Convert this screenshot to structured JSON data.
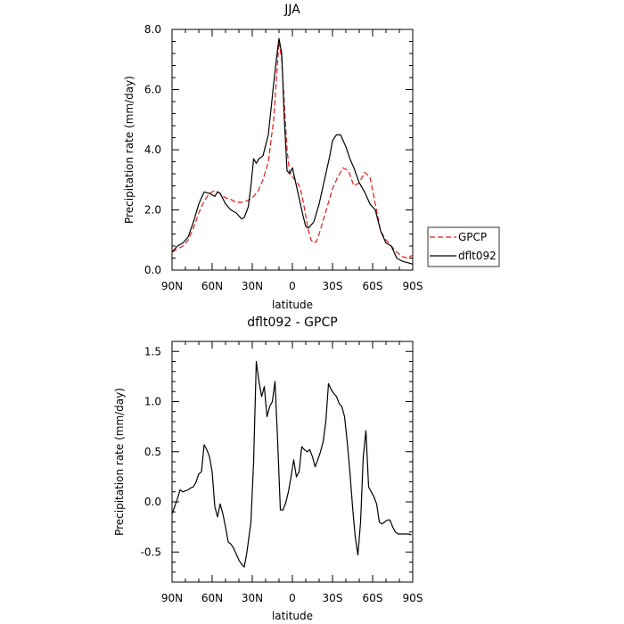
{
  "chart_data": [
    {
      "type": "line",
      "title": "JJA",
      "xlabel": "latitude",
      "ylabel": "Precipitation rate (mm/day)",
      "xlim": [
        90,
        -90
      ],
      "ylim": [
        0,
        8
      ],
      "x_ticks": [
        90,
        60,
        30,
        0,
        -30,
        -60,
        -90
      ],
      "x_tick_labels": [
        "90N",
        "60N",
        "30N",
        "0",
        "30S",
        "60S",
        "90S"
      ],
      "y_ticks": [
        0,
        2,
        4,
        6,
        8
      ],
      "y_tick_labels": [
        "0.0",
        "2.0",
        "4.0",
        "6.0",
        "8.0"
      ],
      "legend": {
        "placement": "right-outside-bottom",
        "entries": [
          "GPCP",
          "dflt092"
        ]
      },
      "series": [
        {
          "name": "GPCP",
          "color": "#e31a1c",
          "dash": "dashed",
          "x": [
            90,
            86,
            82,
            78,
            74,
            70,
            66,
            62,
            58,
            54,
            50,
            46,
            42,
            38,
            34,
            30,
            26,
            22,
            18,
            14,
            12,
            10,
            8,
            6,
            4,
            2,
            0,
            -2,
            -4,
            -6,
            -8,
            -10,
            -12,
            -14,
            -16,
            -18,
            -20,
            -22,
            -24,
            -26,
            -28,
            -30,
            -34,
            -38,
            -42,
            -46,
            -50,
            -54,
            -58,
            -62,
            -66,
            -70,
            -74,
            -78,
            -82,
            -86,
            -90
          ],
          "values": [
            0.6,
            0.7,
            0.8,
            1.0,
            1.4,
            1.9,
            2.3,
            2.55,
            2.65,
            2.55,
            2.4,
            2.35,
            2.25,
            2.25,
            2.3,
            2.4,
            2.6,
            3.0,
            3.6,
            5.0,
            6.3,
            7.6,
            7.0,
            5.5,
            4.0,
            3.2,
            3.1,
            3.0,
            2.9,
            2.7,
            2.3,
            1.8,
            1.3,
            1.0,
            0.9,
            0.95,
            1.2,
            1.5,
            1.8,
            2.1,
            2.4,
            2.7,
            3.1,
            3.4,
            3.3,
            2.8,
            2.9,
            3.25,
            3.1,
            2.2,
            1.3,
            1.0,
            0.8,
            0.6,
            0.45,
            0.4,
            0.5
          ]
        },
        {
          "name": "dflt092",
          "color": "#000000",
          "dash": "solid",
          "x": [
            90,
            86,
            82,
            78,
            74,
            70,
            66,
            62,
            58,
            56,
            54,
            50,
            46,
            42,
            38,
            36,
            33,
            31,
            29,
            27,
            25,
            22,
            18,
            14,
            12,
            10,
            8,
            6,
            4,
            2,
            0,
            -2,
            -4,
            -6,
            -8,
            -10,
            -12,
            -14,
            -16,
            -18,
            -20,
            -22,
            -24,
            -26,
            -28,
            -30,
            -33,
            -36,
            -38,
            -40,
            -43,
            -46,
            -50,
            -54,
            -58,
            -62,
            -66,
            -70,
            -74,
            -78,
            -82,
            -86,
            -90
          ],
          "values": [
            0.6,
            0.8,
            0.9,
            1.1,
            1.6,
            2.2,
            2.6,
            2.55,
            2.45,
            2.6,
            2.55,
            2.2,
            2.0,
            1.9,
            1.7,
            1.75,
            2.1,
            2.8,
            3.7,
            3.55,
            3.7,
            3.8,
            4.5,
            6.2,
            7.0,
            7.7,
            7.2,
            5.0,
            3.3,
            3.2,
            3.4,
            3.0,
            2.6,
            2.2,
            1.8,
            1.45,
            1.4,
            1.5,
            1.6,
            1.9,
            2.2,
            2.6,
            3.0,
            3.4,
            3.8,
            4.3,
            4.5,
            4.5,
            4.3,
            4.1,
            3.7,
            3.4,
            2.9,
            2.6,
            2.2,
            2.0,
            1.3,
            0.9,
            0.8,
            0.4,
            0.3,
            0.25,
            0.2
          ]
        }
      ]
    },
    {
      "type": "line",
      "title": "dflt092 - GPCP",
      "xlabel": "latitude",
      "ylabel": "Precipitation rate (mm/day)",
      "xlim": [
        90,
        -90
      ],
      "ylim": [
        -0.8,
        1.6
      ],
      "x_ticks": [
        90,
        60,
        30,
        0,
        -30,
        -60,
        -90
      ],
      "x_tick_labels": [
        "90N",
        "60N",
        "30N",
        "0",
        "30S",
        "60S",
        "90S"
      ],
      "y_ticks": [
        -0.5,
        0,
        0.5,
        1.0,
        1.5
      ],
      "y_tick_labels": [
        "-0.5",
        "0.0",
        "0.5",
        "1.0",
        "1.5"
      ],
      "series": [
        {
          "color": "#000000",
          "dash": "solid",
          "x": [
            90,
            86,
            84,
            82,
            78,
            76,
            74,
            72,
            70,
            68,
            66,
            64,
            62,
            60,
            58,
            56,
            54,
            52,
            50,
            48,
            46,
            44,
            42,
            40,
            38,
            36,
            34,
            31,
            29,
            27,
            25,
            23,
            21,
            19,
            17,
            15,
            13,
            11,
            9,
            7,
            5,
            3,
            1,
            -1,
            -3,
            -5,
            -7,
            -9,
            -11,
            -13,
            -15,
            -17,
            -19,
            -21,
            -23,
            -25,
            -27,
            -29,
            -31,
            -33,
            -35,
            -37,
            -39,
            -41,
            -43,
            -45,
            -47,
            -49,
            -51,
            -53,
            -55,
            -57,
            -59,
            -61,
            -63,
            -65,
            -67,
            -69,
            -71,
            -73,
            -75,
            -77,
            -79,
            -81,
            -83,
            -85,
            -87,
            -89
          ],
          "values": [
            -0.12,
            0.03,
            0.12,
            0.1,
            0.12,
            0.14,
            0.15,
            0.2,
            0.28,
            0.3,
            0.57,
            0.52,
            0.45,
            0.3,
            -0.05,
            -0.15,
            -0.02,
            -0.12,
            -0.25,
            -0.4,
            -0.42,
            -0.46,
            -0.52,
            -0.58,
            -0.62,
            -0.65,
            -0.5,
            -0.2,
            0.4,
            1.4,
            1.2,
            1.05,
            1.15,
            0.85,
            0.95,
            1.0,
            1.2,
            0.6,
            -0.08,
            -0.08,
            -0.01,
            0.1,
            0.25,
            0.42,
            0.25,
            0.3,
            0.55,
            0.52,
            0.5,
            0.52,
            0.45,
            0.35,
            0.42,
            0.5,
            0.6,
            0.8,
            1.18,
            1.12,
            1.08,
            1.05,
            0.98,
            0.95,
            0.85,
            0.6,
            0.3,
            -0.05,
            -0.35,
            -0.53,
            -0.2,
            0.45,
            0.71,
            0.15,
            0.1,
            0.05,
            -0.02,
            -0.2,
            -0.22,
            -0.2,
            -0.18,
            -0.18,
            -0.25,
            -0.3,
            -0.32,
            -0.32,
            -0.32,
            -0.32,
            -0.32,
            -0.33
          ]
        }
      ]
    }
  ]
}
